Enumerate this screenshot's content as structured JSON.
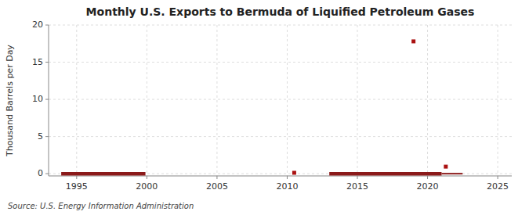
{
  "chart_data": {
    "type": "line",
    "title": "Monthly U.S. Exports to Bermuda of Liquified Petroleum Gases",
    "ylabel": "Thousand Barrels per Day",
    "source": "Source: U.S. Energy Information Administration",
    "xlim": [
      1993,
      2026
    ],
    "ylim": [
      -0.3,
      20
    ],
    "xticks": [
      1995,
      2000,
      2005,
      2010,
      2015,
      2020,
      2025
    ],
    "yticks": [
      0,
      5,
      10,
      15,
      20
    ],
    "grid": true,
    "series": [
      {
        "type": "line",
        "line_style": "thick",
        "color": "#8b1a1a",
        "x": [
          1993.9,
          1999.9
        ],
        "values": [
          0,
          0
        ]
      },
      {
        "type": "line",
        "line_style": "thick",
        "color": "#8b1a1a",
        "x": [
          2013.0,
          2021.0
        ],
        "values": [
          0,
          0
        ]
      },
      {
        "type": "line",
        "line_style": "solid",
        "color": "#8b1a1a",
        "x": [
          2021.0,
          2022.5
        ],
        "values": [
          0,
          0
        ]
      },
      {
        "type": "scatter",
        "marker": "square",
        "color": "#aa1111",
        "x": [
          2010.5,
          2019.0,
          2021.3
        ],
        "values": [
          0.12,
          17.8,
          0.95
        ]
      }
    ]
  }
}
